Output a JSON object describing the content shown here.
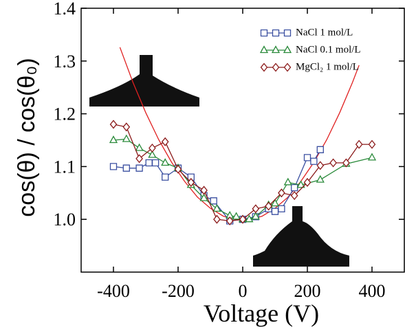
{
  "chart_data": {
    "type": "line",
    "x_label": "Voltage (V)",
    "y_label": "cos(θ) / cos(θ₀)",
    "xlim": [
      -500,
      500
    ],
    "ylim": [
      0.9,
      1.4
    ],
    "xticks": [
      -400,
      -200,
      0,
      200,
      400
    ],
    "yticks": [
      1.0,
      1.1,
      1.2,
      1.3,
      1.4
    ],
    "series": [
      {
        "name": "NaCl 1 mol/L",
        "color": "#3a4fa0",
        "marker": "square",
        "x": [
          -400,
          -360,
          -320,
          -290,
          -270,
          -240,
          -200,
          -160,
          -120,
          -90,
          -40,
          0,
          40,
          80,
          100,
          120,
          160,
          200,
          220,
          240
        ],
        "values": [
          1.1,
          1.097,
          1.097,
          1.107,
          1.107,
          1.08,
          1.097,
          1.08,
          1.045,
          1.035,
          0.997,
          1.0,
          1.005,
          1.02,
          1.015,
          1.02,
          1.06,
          1.117,
          1.11,
          1.132
        ]
      },
      {
        "name": "NaCl 0.1 mol/L",
        "color": "#2a8a3a",
        "marker": "triangle",
        "x": [
          -400,
          -360,
          -320,
          -280,
          -240,
          -200,
          -160,
          -120,
          -80,
          -40,
          -20,
          0,
          20,
          40,
          80,
          100,
          140,
          180,
          240,
          320,
          400
        ],
        "values": [
          1.15,
          1.152,
          1.135,
          1.122,
          1.107,
          1.097,
          1.065,
          1.04,
          1.02,
          1.007,
          1.005,
          1.0,
          1.0,
          1.005,
          1.027,
          1.03,
          1.07,
          1.065,
          1.075,
          1.105,
          1.117
        ]
      },
      {
        "name": "MgCl₂ 1 mol/L",
        "color": "#8b1a1a",
        "marker": "diamond",
        "x": [
          -400,
          -360,
          -320,
          -280,
          -240,
          -200,
          -160,
          -120,
          -80,
          -40,
          0,
          40,
          80,
          120,
          160,
          200,
          240,
          280,
          320,
          360,
          400
        ],
        "values": [
          1.18,
          1.175,
          1.115,
          1.135,
          1.147,
          1.095,
          1.07,
          1.055,
          1.0,
          0.997,
          1.0,
          1.02,
          1.025,
          1.05,
          1.045,
          1.07,
          1.102,
          1.107,
          1.107,
          1.142,
          1.142
        ]
      }
    ],
    "curve": {
      "color": "#e02020",
      "x": [
        -380,
        -340,
        -300,
        -260,
        -220,
        -180,
        -140,
        -100,
        -60,
        -20,
        20,
        60,
        100,
        140,
        180,
        220,
        260,
        300,
        340,
        360
      ],
      "values": [
        1.326,
        1.26,
        1.202,
        1.151,
        1.108,
        1.072,
        1.042,
        1.021,
        1.006,
        0.999,
        0.999,
        1.006,
        1.021,
        1.042,
        1.072,
        1.108,
        1.151,
        1.202,
        1.26,
        1.292
      ]
    }
  }
}
